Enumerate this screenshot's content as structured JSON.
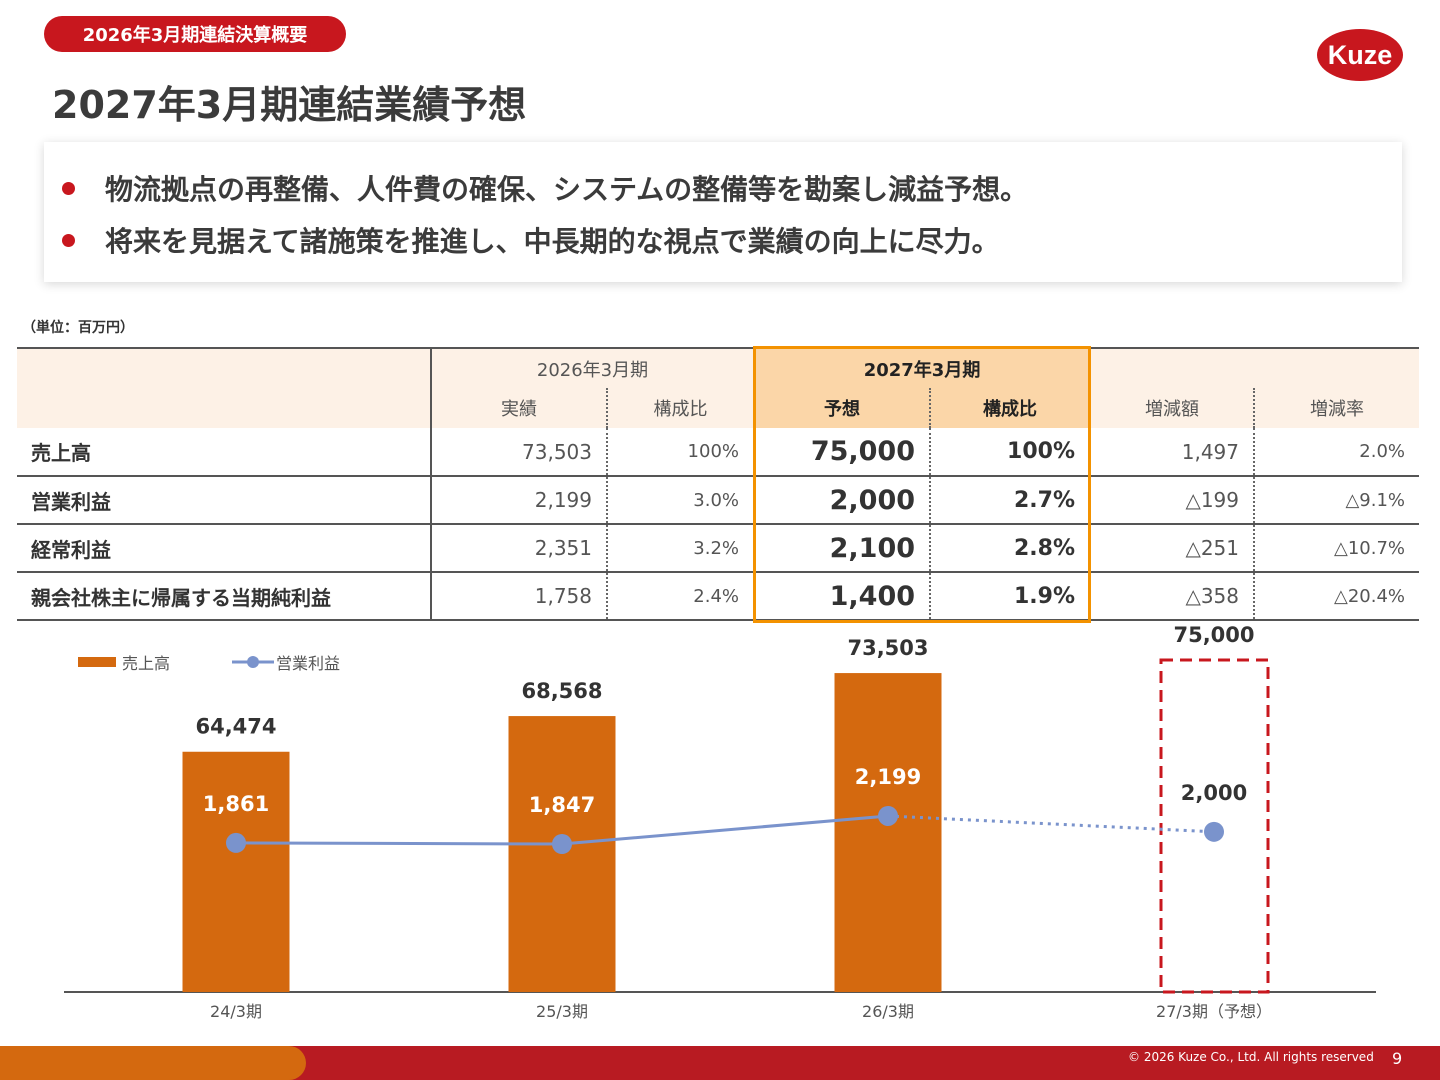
{
  "header": {
    "tag": "2026年3月期連結決算概要",
    "title": "2027年3月期連結業績予想",
    "logo_text": "Kuze",
    "brand_color": "#c8171e"
  },
  "summary": {
    "bullets": [
      "物流拠点の再整備、人件費の確保、システムの整備等を勘案し減益予想。",
      "将来を見据えて諸施策を推進し、中長期的な視点で業績の向上に尽力。"
    ]
  },
  "table": {
    "unit": "（単位：百万円）",
    "group_2026": "2026年3月期",
    "group_2027": "2027年3月期",
    "cols": {
      "actual": "実績",
      "ratio": "構成比",
      "forecast": "予想",
      "forecast_ratio": "構成比",
      "change": "増減額",
      "change_rate": "増減率"
    },
    "rows": [
      {
        "label": "売上高",
        "actual": "73,503",
        "ratio": "100%",
        "forecast": "75,000",
        "forecast_ratio": "100%",
        "change": "1,497",
        "change_rate": "2.0%"
      },
      {
        "label": "営業利益",
        "actual": "2,199",
        "ratio": "3.0%",
        "forecast": "2,000",
        "forecast_ratio": "2.7%",
        "change": "△199",
        "change_rate": "△9.1%"
      },
      {
        "label": "経常利益",
        "actual": "2,351",
        "ratio": "3.2%",
        "forecast": "2,100",
        "forecast_ratio": "2.8%",
        "change": "△251",
        "change_rate": "△10.7%"
      },
      {
        "label": "親会社株主に帰属する当期純利益",
        "actual": "1,758",
        "ratio": "2.4%",
        "forecast": "1,400",
        "forecast_ratio": "1.9%",
        "change": "△358",
        "change_rate": "△20.4%"
      }
    ]
  },
  "chart_data": {
    "type": "bar",
    "categories": [
      "24/3期",
      "25/3期",
      "26/3期",
      "27/3期（予想）"
    ],
    "series": [
      {
        "name": "売上高",
        "kind": "bar",
        "color": "#d4690f",
        "values": [
          64474,
          68568,
          73503,
          75000
        ],
        "labels": [
          "64,474",
          "68,568",
          "73,503",
          "75,000"
        ]
      },
      {
        "name": "営業利益",
        "kind": "line",
        "color": "#7a93cc",
        "values": [
          1861,
          1847,
          2199,
          2000
        ],
        "labels": [
          "1,861",
          "1,847",
          "2,199",
          "2,000"
        ]
      }
    ],
    "forecast_index": 3,
    "forecast_style": "dashed box / dotted line",
    "highlight_color": "#c8171e",
    "legend_position": "top-left"
  },
  "footer": {
    "copyright": "© 2026 Kuze Co., Ltd. All rights reserved",
    "page": "9"
  }
}
